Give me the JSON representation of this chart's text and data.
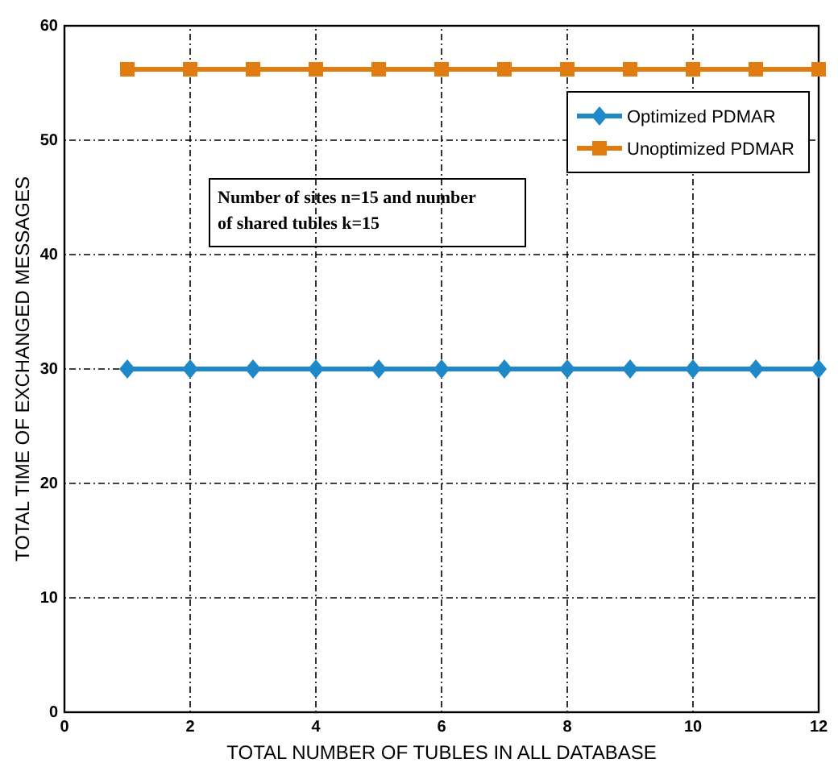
{
  "chart_data": {
    "type": "line",
    "xlabel": "TOTAL NUMBER OF TUBLES IN ALL DATABASE",
    "ylabel": "TOTAL TIME OF EXCHANGED MESSAGES",
    "x": [
      1,
      2,
      3,
      4,
      5,
      6,
      7,
      8,
      9,
      10,
      11,
      12
    ],
    "series": [
      {
        "name": "Optimized PDMAR",
        "color": "#1f88c8",
        "marker": "diamond",
        "values": [
          30,
          30,
          30,
          30,
          30,
          30,
          30,
          30,
          30,
          30,
          30,
          30
        ]
      },
      {
        "name": "Unoptimized PDMAR",
        "color": "#e07c10",
        "marker": "square",
        "values": [
          56.2,
          56.2,
          56.2,
          56.2,
          56.2,
          56.2,
          56.2,
          56.2,
          56.2,
          56.2,
          56.2,
          56.2
        ]
      }
    ],
    "xlim": [
      0,
      12
    ],
    "xticks": [
      0,
      2,
      4,
      6,
      8,
      10,
      12
    ],
    "ylim": [
      0,
      60
    ],
    "yticks": [
      0,
      10,
      20,
      30,
      40,
      50,
      60
    ],
    "grid": true,
    "legend": "top right",
    "annotations": [
      "Number of sites n=15 and number\nof shared tubles k=15"
    ]
  }
}
